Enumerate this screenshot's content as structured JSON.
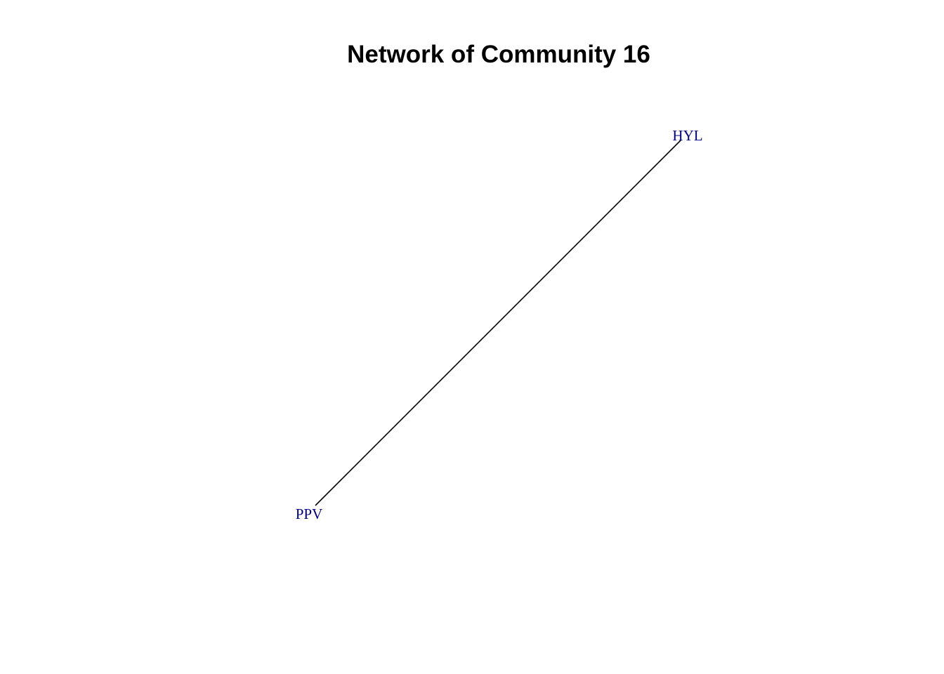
{
  "title": "Network of Community 16",
  "colors": {
    "background": "#ffffff",
    "edge": "#000000",
    "label": "#00008b",
    "title": "#000000"
  },
  "nodes": [
    {
      "id": "HYL",
      "label": "HYL"
    },
    {
      "id": "PPV",
      "label": "PPV"
    }
  ],
  "edges": [
    {
      "source": "PPV",
      "target": "HYL"
    }
  ]
}
